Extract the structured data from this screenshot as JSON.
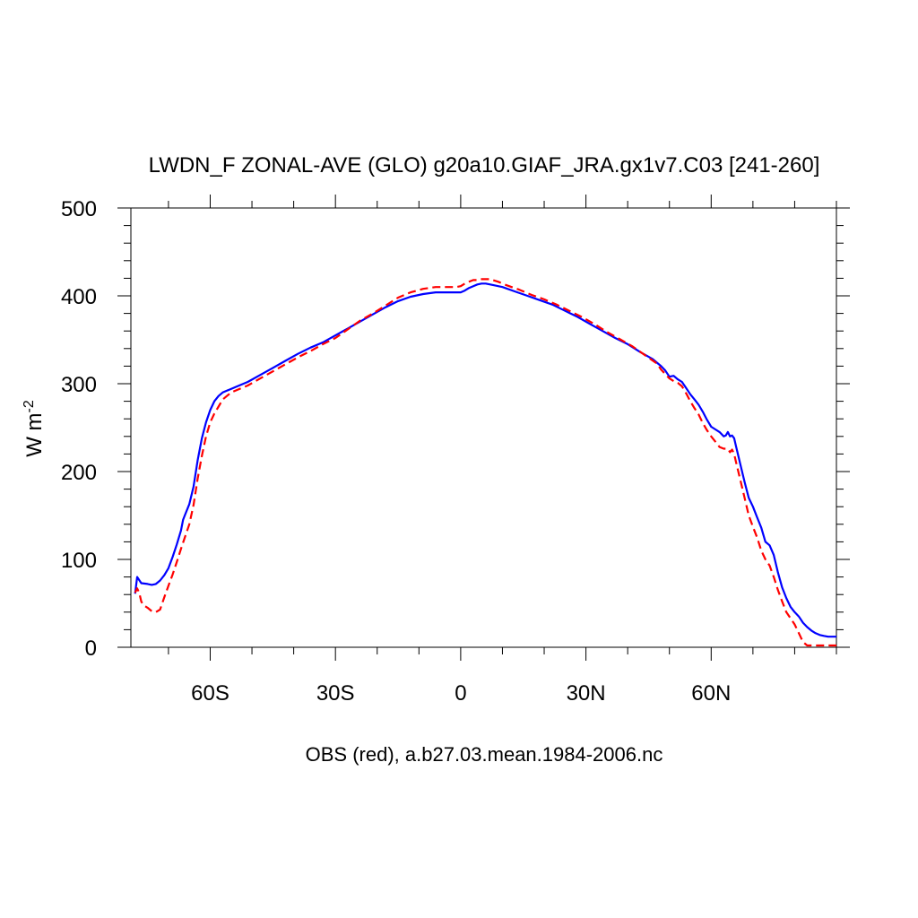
{
  "chart_data": {
    "type": "line",
    "title": "LWDN_F ZONAL-AVE (GLO) g20a10.GIAF_JRA.gx1v7.C03 [241-260]",
    "xlabel": "OBS (red), a.b27.03.mean.1984-2006.nc",
    "ylabel": "W m",
    "ylabel_superscript": "-2",
    "xlim": [
      -79,
      90
    ],
    "ylim": [
      0,
      500
    ],
    "yticks": [
      0,
      100,
      200,
      300,
      400,
      500
    ],
    "xticks": [
      {
        "value": -60,
        "label": "60S"
      },
      {
        "value": -30,
        "label": "30S"
      },
      {
        "value": 0,
        "label": "0"
      },
      {
        "value": 30,
        "label": "30N"
      },
      {
        "value": 60,
        "label": "60N"
      }
    ],
    "grid": false,
    "series": [
      {
        "color": "#0000ff",
        "dash": "solid",
        "points": [
          [
            -78,
            61
          ],
          [
            -77.5,
            80
          ],
          [
            -76.5,
            73
          ],
          [
            -75,
            72
          ],
          [
            -74,
            71
          ],
          [
            -73,
            72
          ],
          [
            -72,
            76
          ],
          [
            -71,
            82
          ],
          [
            -70,
            90
          ],
          [
            -69,
            103
          ],
          [
            -68,
            117
          ],
          [
            -67,
            133
          ],
          [
            -66.5,
            145
          ],
          [
            -66,
            151
          ],
          [
            -65,
            163
          ],
          [
            -64,
            183
          ],
          [
            -63,
            213
          ],
          [
            -62,
            238
          ],
          [
            -61,
            256
          ],
          [
            -60,
            270
          ],
          [
            -59,
            280
          ],
          [
            -58,
            286
          ],
          [
            -57,
            290
          ],
          [
            -56,
            292
          ],
          [
            -54,
            296
          ],
          [
            -51,
            302
          ],
          [
            -48,
            310
          ],
          [
            -45,
            318
          ],
          [
            -42,
            326
          ],
          [
            -39,
            334
          ],
          [
            -36,
            341
          ],
          [
            -33,
            347
          ],
          [
            -30,
            355
          ],
          [
            -27,
            363
          ],
          [
            -24,
            371
          ],
          [
            -21,
            379
          ],
          [
            -18,
            387
          ],
          [
            -15,
            394
          ],
          [
            -12,
            399
          ],
          [
            -9,
            402
          ],
          [
            -6,
            404
          ],
          [
            -3,
            404
          ],
          [
            0,
            404
          ],
          [
            1,
            406
          ],
          [
            2,
            409
          ],
          [
            3,
            411
          ],
          [
            4,
            413
          ],
          [
            5,
            414
          ],
          [
            6,
            414
          ],
          [
            8,
            412
          ],
          [
            10,
            410
          ],
          [
            13,
            405
          ],
          [
            16,
            400
          ],
          [
            19,
            395
          ],
          [
            22,
            390
          ],
          [
            25,
            383
          ],
          [
            28,
            376
          ],
          [
            31,
            368
          ],
          [
            34,
            360
          ],
          [
            37,
            352
          ],
          [
            40,
            345
          ],
          [
            43,
            336
          ],
          [
            46,
            328
          ],
          [
            48,
            320
          ],
          [
            49,
            315
          ],
          [
            50,
            308
          ],
          [
            51,
            309
          ],
          [
            52,
            305
          ],
          [
            53,
            302
          ],
          [
            54,
            295
          ],
          [
            55,
            288
          ],
          [
            56,
            282
          ],
          [
            57,
            276
          ],
          [
            58,
            268
          ],
          [
            59,
            259
          ],
          [
            60,
            251
          ],
          [
            61,
            248
          ],
          [
            62,
            245
          ],
          [
            63,
            240
          ],
          [
            63.5,
            241
          ],
          [
            64,
            245
          ],
          [
            64.5,
            240
          ],
          [
            65,
            241
          ],
          [
            65.5,
            238
          ],
          [
            66,
            228
          ],
          [
            67,
            208
          ],
          [
            68,
            188
          ],
          [
            69,
            170
          ],
          [
            70,
            160
          ],
          [
            71,
            148
          ],
          [
            72,
            136
          ],
          [
            73,
            120
          ],
          [
            74,
            116
          ],
          [
            75,
            105
          ],
          [
            76,
            85
          ],
          [
            77,
            68
          ],
          [
            78,
            56
          ],
          [
            79,
            46
          ],
          [
            80,
            40
          ],
          [
            81,
            35
          ],
          [
            82,
            28
          ],
          [
            83,
            23
          ],
          [
            84,
            19
          ],
          [
            85,
            16
          ],
          [
            86,
            14
          ],
          [
            87,
            13
          ],
          [
            88,
            12
          ],
          [
            89,
            12
          ],
          [
            90,
            12
          ]
        ]
      },
      {
        "color": "#ff0000",
        "dash": "dashed",
        "points": [
          [
            -78,
            62
          ],
          [
            -77.5,
            67
          ],
          [
            -77,
            62
          ],
          [
            -76.5,
            52
          ],
          [
            -76,
            48
          ],
          [
            -75,
            45
          ],
          [
            -74,
            41
          ],
          [
            -73,
            40
          ],
          [
            -72,
            43
          ],
          [
            -71,
            57
          ],
          [
            -70,
            70
          ],
          [
            -69,
            83
          ],
          [
            -68,
            97
          ],
          [
            -67,
            112
          ],
          [
            -66,
            126
          ],
          [
            -65,
            140
          ],
          [
            -64,
            162
          ],
          [
            -63,
            192
          ],
          [
            -62,
            218
          ],
          [
            -61,
            240
          ],
          [
            -60,
            256
          ],
          [
            -59,
            266
          ],
          [
            -58,
            274
          ],
          [
            -57,
            282
          ],
          [
            -56,
            286
          ],
          [
            -55,
            290
          ],
          [
            -53,
            294
          ],
          [
            -51,
            298
          ],
          [
            -48,
            306
          ],
          [
            -45,
            314
          ],
          [
            -42,
            322
          ],
          [
            -39,
            330
          ],
          [
            -36,
            337
          ],
          [
            -33,
            345
          ],
          [
            -30,
            352
          ],
          [
            -27,
            362
          ],
          [
            -24,
            372
          ],
          [
            -21,
            380
          ],
          [
            -18,
            389
          ],
          [
            -15,
            398
          ],
          [
            -12,
            404
          ],
          [
            -9,
            408
          ],
          [
            -6,
            410
          ],
          [
            -3,
            410
          ],
          [
            -1,
            410
          ],
          [
            0,
            411
          ],
          [
            1,
            414
          ],
          [
            2,
            416
          ],
          [
            3,
            418
          ],
          [
            4,
            418
          ],
          [
            5,
            419
          ],
          [
            7,
            419
          ],
          [
            9,
            416
          ],
          [
            11,
            412
          ],
          [
            14,
            407
          ],
          [
            17,
            401
          ],
          [
            20,
            396
          ],
          [
            23,
            390
          ],
          [
            26,
            383
          ],
          [
            29,
            376
          ],
          [
            32,
            368
          ],
          [
            35,
            359
          ],
          [
            38,
            351
          ],
          [
            41,
            343
          ],
          [
            44,
            333
          ],
          [
            47,
            323
          ],
          [
            48,
            316
          ],
          [
            49,
            311
          ],
          [
            50,
            306
          ],
          [
            51,
            303
          ],
          [
            52,
            301
          ],
          [
            53,
            297
          ],
          [
            54,
            289
          ],
          [
            55,
            280
          ],
          [
            56,
            272
          ],
          [
            57,
            265
          ],
          [
            58,
            255
          ],
          [
            59,
            247
          ],
          [
            60,
            240
          ],
          [
            61,
            234
          ],
          [
            62,
            228
          ],
          [
            63,
            226
          ],
          [
            64,
            226
          ],
          [
            64.5,
            222
          ],
          [
            65,
            225
          ],
          [
            65.5,
            220
          ],
          [
            66,
            210
          ],
          [
            67,
            190
          ],
          [
            68,
            170
          ],
          [
            69,
            150
          ],
          [
            70,
            137
          ],
          [
            71,
            125
          ],
          [
            72,
            110
          ],
          [
            73,
            100
          ],
          [
            74,
            93
          ],
          [
            75,
            80
          ],
          [
            76,
            65
          ],
          [
            77,
            52
          ],
          [
            78,
            40
          ],
          [
            79,
            33
          ],
          [
            80,
            26
          ],
          [
            81,
            16
          ],
          [
            82,
            6
          ],
          [
            83,
            2
          ],
          [
            84,
            2
          ],
          [
            86,
            2
          ],
          [
            88,
            2
          ],
          [
            90,
            2
          ]
        ]
      }
    ]
  }
}
